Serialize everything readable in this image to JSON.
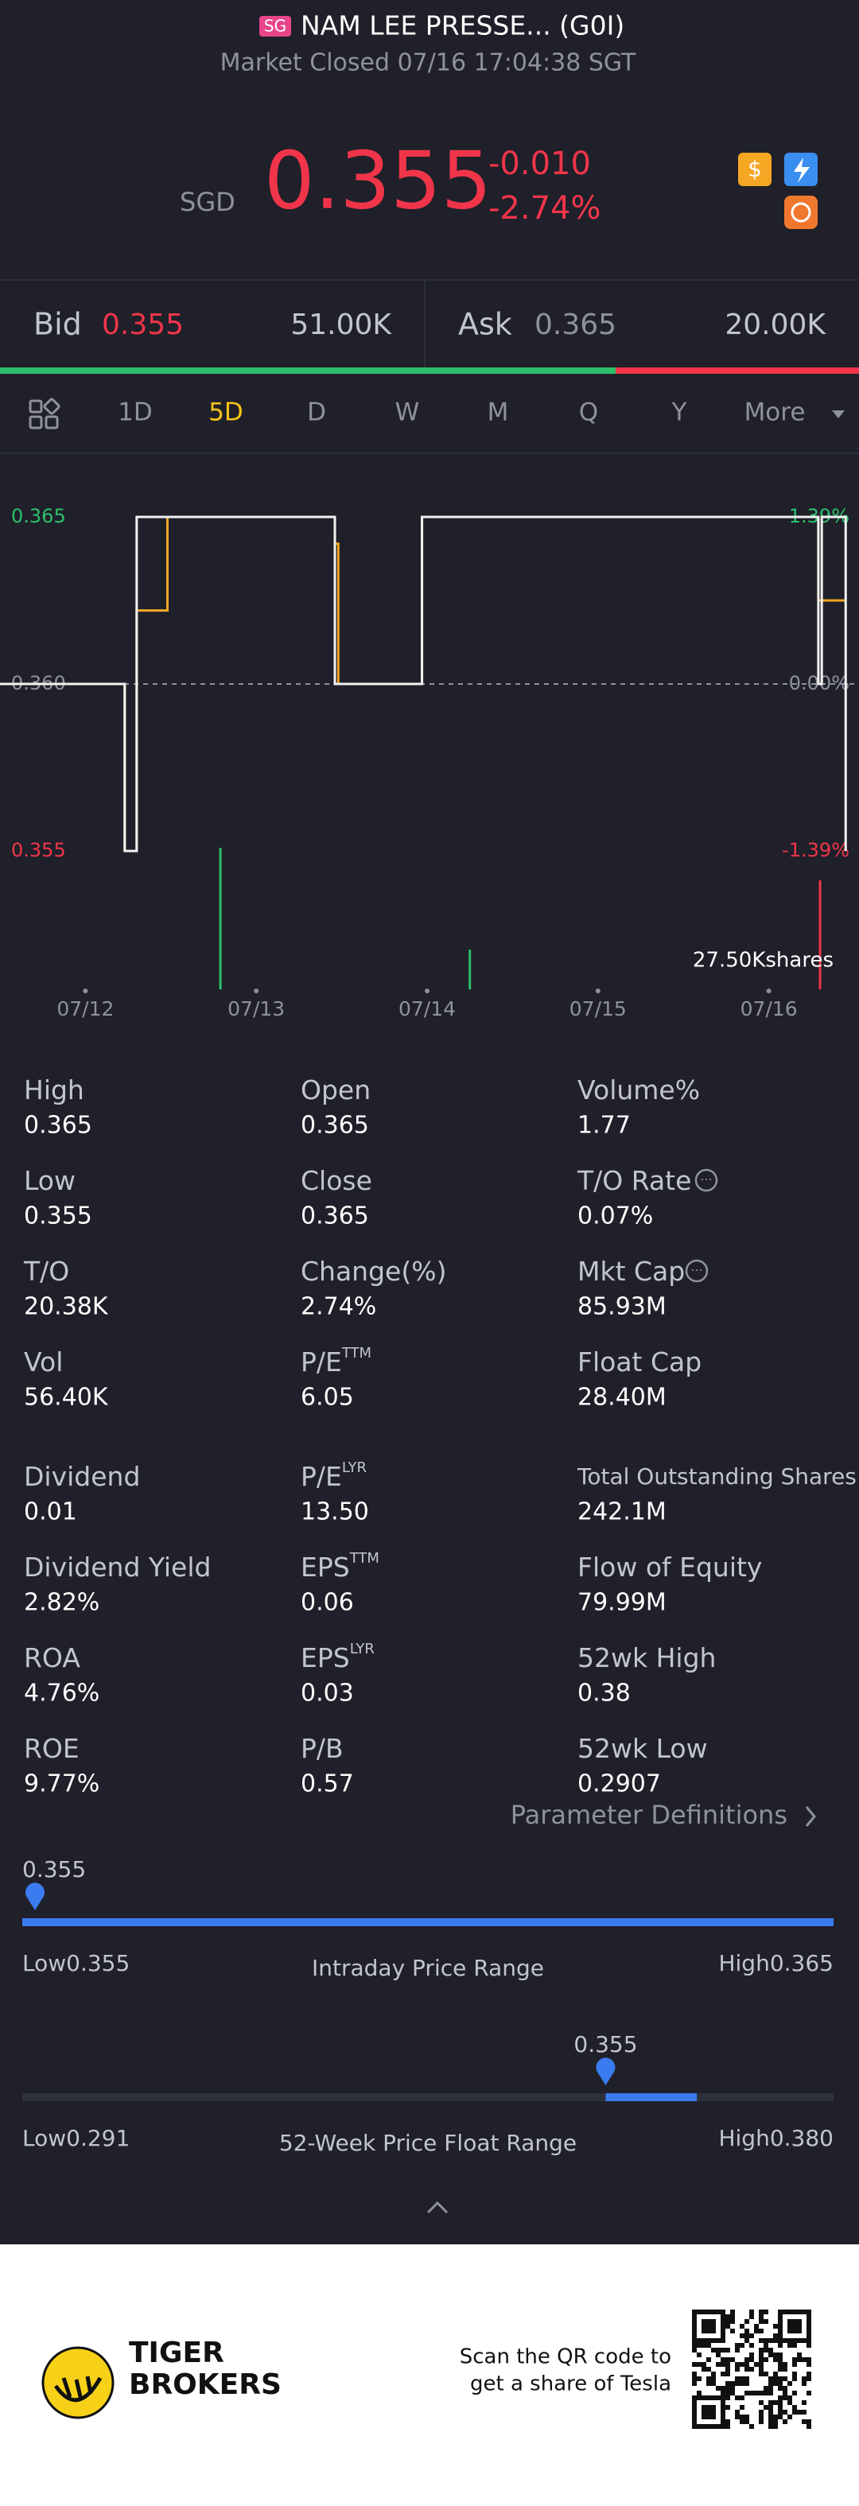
{
  "header": {
    "badge": "SG",
    "name": "NAM LEE PRESSE... (G0I)",
    "status": "Market Closed 07/16 17:04:38 SGT"
  },
  "quote": {
    "currency": "SGD",
    "price": "0.355",
    "change": "-0.010",
    "change_pct": "-2.74%"
  },
  "order_book": {
    "bid_label": "Bid",
    "bid_price": "0.355",
    "bid_size": "51.00K",
    "ask_label": "Ask",
    "ask_price": "0.365",
    "ask_size": "20.00K"
  },
  "tabs": {
    "items": [
      "1D",
      "5D",
      "D",
      "W",
      "M",
      "Q",
      "Y",
      "More"
    ],
    "active": 1
  },
  "chart_data": {
    "type": "line",
    "xlim": [
      0,
      5
    ],
    "xticks": [
      {
        "value": 0.5,
        "label": "07/12"
      },
      {
        "value": 1.5,
        "label": "07/13"
      },
      {
        "value": 2.5,
        "label": "07/14"
      },
      {
        "value": 3.5,
        "label": "07/15"
      },
      {
        "value": 4.5,
        "label": "07/16"
      }
    ],
    "ylim": [
      0.355,
      0.365
    ],
    "yticks": [
      {
        "value": 0.365,
        "label": "0.365"
      },
      {
        "value": 0.36,
        "label": "0.360"
      },
      {
        "value": 0.355,
        "label": "0.355"
      }
    ],
    "y2lim": [
      -1.39,
      1.39
    ],
    "y2ticks": [
      {
        "value": 1.39,
        "label": "1.39%"
      },
      {
        "value": 0,
        "label": "0.00%"
      },
      {
        "value": -1.39,
        "label": "-1.39%"
      }
    ],
    "series": [
      {
        "color": "#f2f2f2",
        "x": [
          0,
          0.73,
          0.73,
          0.8,
          0.8,
          1.96,
          1.96,
          2.47,
          2.47,
          4.79,
          4.79,
          4.81,
          4.81,
          4.95,
          4.95
        ],
        "values": [
          0.36,
          0.36,
          0.355,
          0.355,
          0.365,
          0.365,
          0.36,
          0.36,
          0.365,
          0.365,
          0.36,
          0.36,
          0.365,
          0.365,
          0.355
        ]
      },
      {
        "color": "#f5a623",
        "x": [
          0,
          0.73,
          0.73,
          0.8,
          0.8,
          0.98,
          0.98,
          1.96,
          1.96,
          1.98,
          1.98,
          2.47,
          2.47,
          4.79,
          4.79,
          4.95
        ],
        "values": [
          0.36,
          0.36,
          0.355,
          0.355,
          0.3622,
          0.3622,
          0.365,
          0.365,
          0.3642,
          0.3642,
          0.36,
          0.36,
          0.365,
          0.365,
          0.3625,
          0.3625
        ]
      }
    ],
    "volume": {
      "label": "27.50Kshares",
      "ylim": [
        0,
        27.5
      ],
      "x": [
        1.29,
        2.75,
        4.8
      ],
      "values": [
        27.5,
        7.7,
        21.2
      ],
      "colors": [
        "#2dbf6b",
        "#2dbf6b",
        "#f0354a"
      ]
    }
  },
  "stats": [
    {
      "label": "High",
      "value": "0.365"
    },
    {
      "label": "Open",
      "value": "0.365"
    },
    {
      "label": "Volume%",
      "value": "1.77"
    },
    {
      "label": "Low",
      "value": "0.355"
    },
    {
      "label": "Close",
      "value": "0.365"
    },
    {
      "label": "T/O Rate",
      "value": "0.07%"
    },
    {
      "label": "T/O",
      "value": "20.38K"
    },
    {
      "label": "Change(%)",
      "value": "2.74%"
    },
    {
      "label": "Mkt Cap",
      "value": "85.93M"
    },
    {
      "label": "Vol",
      "value": "56.40K"
    },
    {
      "label": "P/E",
      "sup": "TTM",
      "value": "6.05"
    },
    {
      "label": "Float Cap",
      "value": "28.40M"
    },
    {
      "label": "Dividend",
      "value": "0.01"
    },
    {
      "label": "P/E",
      "sup": "LYR",
      "value": "13.50"
    },
    {
      "label": "Total Outstanding Shares",
      "value": "242.1M"
    },
    {
      "label": "Dividend Yield",
      "value": "2.82%"
    },
    {
      "label": "EPS",
      "sup": "TTM",
      "value": "0.06"
    },
    {
      "label": "Flow of Equity",
      "value": "79.99M"
    },
    {
      "label": "ROA",
      "value": "4.76%"
    },
    {
      "label": "EPS",
      "sup": "LYR",
      "value": "0.03"
    },
    {
      "label": "52wk High",
      "value": "0.38"
    },
    {
      "label": "ROE",
      "value": "9.77%"
    },
    {
      "label": "P/B",
      "value": "0.57"
    },
    {
      "label": "52wk Low",
      "value": "0.2907"
    }
  ],
  "definitions_link": "Parameter Definitions",
  "intraday": {
    "title": "Intraday Price Range",
    "low_label": "Low",
    "high_label": "High",
    "low": 0.355,
    "high": 0.365,
    "current": 0.355
  },
  "week52": {
    "title": "52-Week Price Float Range",
    "low_label": "Low",
    "high_label": "High",
    "low": 0.291,
    "high": 0.38,
    "high_text": "0.380",
    "current": 0.355
  },
  "footer": {
    "brand_line1": "TIGER",
    "brand_line2": "BROKERS",
    "promo_line1": "Scan the QR code to",
    "promo_line2": "get a share of Tesla"
  }
}
